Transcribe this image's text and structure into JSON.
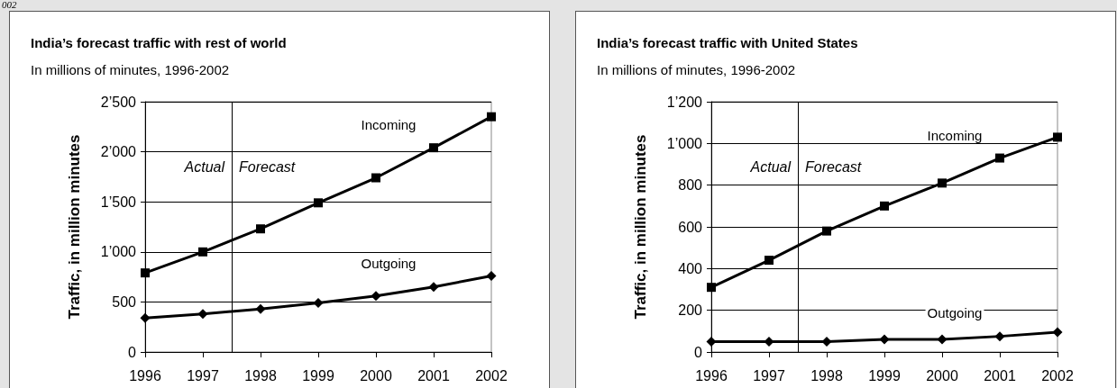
{
  "chart_data": [
    {
      "type": "line",
      "title": "India’s forecast traffic with rest of world",
      "subtitle": "In millions of minutes, 1996-2002",
      "ylabel": "Traffic, in million minutes",
      "x": [
        1996,
        1997,
        1998,
        1999,
        2000,
        2001,
        2002
      ],
      "xlim": [
        1996,
        2002
      ],
      "xticks": [
        1996,
        1997,
        1998,
        1999,
        2000,
        2001,
        2002
      ],
      "ylim": [
        0,
        2500
      ],
      "yticks": [
        0,
        {
          "value": 500,
          "label": "500"
        },
        {
          "value": 1000,
          "label": "1’000"
        },
        {
          "value": 1500,
          "label": "1’500"
        },
        {
          "value": 2000,
          "label": "2’000"
        },
        {
          "value": 2500,
          "label": "2’500"
        }
      ],
      "grid": "y",
      "legend": false,
      "ref_lines": [
        {
          "axis": "x",
          "value": 1997.5,
          "color": "#000000"
        }
      ],
      "annotations": [
        "002",
        "Actual",
        "Forecast"
      ],
      "series": [
        {
          "name": "Incoming",
          "color": "#000000",
          "marker": "square",
          "values": [
            790,
            1000,
            1230,
            1490,
            1740,
            2040,
            2350
          ]
        },
        {
          "name": "Outgoing",
          "color": "#000000",
          "marker": "diamond",
          "values": [
            340,
            380,
            430,
            490,
            560,
            650,
            760
          ]
        }
      ]
    },
    {
      "type": "line",
      "title": "India’s forecast traffic with United States",
      "subtitle": "In millions of minutes, 1996-2002",
      "ylabel": "Traffic, in million minutes",
      "x": [
        1996,
        1997,
        1998,
        1999,
        2000,
        2001,
        2002
      ],
      "xlim": [
        1996,
        2002
      ],
      "xticks": [
        1996,
        1997,
        1998,
        1999,
        2000,
        2001,
        2002
      ],
      "ylim": [
        0,
        1200
      ],
      "yticks": [
        0,
        200,
        400,
        600,
        800,
        {
          "value": 1000,
          "label": "1’000"
        },
        {
          "value": 1200,
          "label": "1’200"
        }
      ],
      "grid": "y",
      "legend": false,
      "ref_lines": [
        {
          "axis": "x",
          "value": 1997.5,
          "color": "#000000"
        }
      ],
      "annotations": [
        "Actual",
        "Forecast"
      ],
      "series": [
        {
          "name": "Incoming",
          "color": "#000000",
          "marker": "square",
          "values": [
            310,
            440,
            580,
            700,
            810,
            930,
            1030
          ]
        },
        {
          "name": "Outgoing",
          "color": "#000000",
          "marker": "diamond",
          "values": [
            50,
            50,
            50,
            60,
            60,
            75,
            95
          ]
        }
      ]
    }
  ]
}
